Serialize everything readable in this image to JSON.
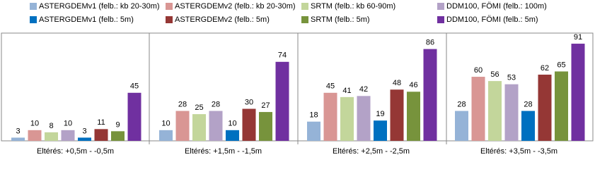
{
  "chart_data": {
    "type": "bar",
    "categories": [
      "Eltérés: +0,5m  -  -0,5m",
      "Eltérés: +1,5m  -  -1,5m",
      "Eltérés: +2,5m  -  -2,5m",
      "Eltérés: +3,5m  -  -3,5m"
    ],
    "series": [
      {
        "name": "ASTERGDEMv1 (felb.: kb 20-30m)",
        "color": "#95b3d7",
        "values": [
          3,
          10,
          18,
          28
        ]
      },
      {
        "name": "ASTERGDEMv2 (felb.: kb 20-30m)",
        "color": "#d99694",
        "values": [
          10,
          28,
          45,
          60
        ]
      },
      {
        "name": "SRTM (felb.: kb 60-90m)",
        "color": "#c3d69b",
        "values": [
          8,
          25,
          41,
          56
        ]
      },
      {
        "name": "DDM100, FÖMI (felb.: 100m)",
        "color": "#b3a2c7",
        "values": [
          10,
          28,
          42,
          53
        ]
      },
      {
        "name": "ASTERGDEMv1 (felb.: 5m)",
        "color": "#0070c0",
        "values": [
          3,
          10,
          19,
          28
        ]
      },
      {
        "name": "ASTERGDEMv2 (felb.: 5m)",
        "color": "#953735",
        "values": [
          11,
          30,
          48,
          62
        ]
      },
      {
        "name": "SRTM (felb.: 5m)",
        "color": "#77933c",
        "values": [
          9,
          27,
          46,
          65
        ]
      },
      {
        "name": "DDM100, FÖMI (felb.: 5m)",
        "color": "#7030a0",
        "values": [
          45,
          74,
          86,
          91
        ]
      }
    ],
    "ylim": [
      0,
      100
    ],
    "legend": "top"
  }
}
